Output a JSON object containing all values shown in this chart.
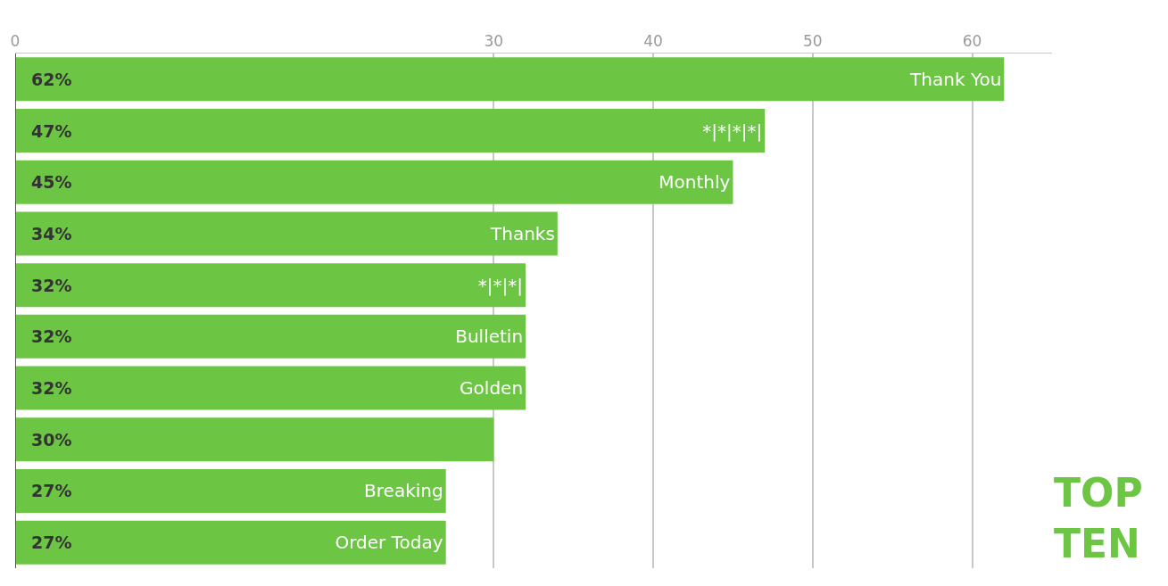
{
  "chart_data": {
    "type": "bar",
    "orientation": "horizontal",
    "categories": [
      "Thank You",
      "*|*|*|*|",
      "Monthly",
      "Thanks",
      "*|*|*|",
      "Bulletin",
      "Golden",
      null,
      "Breaking",
      "Order Today"
    ],
    "values": [
      62,
      47,
      45,
      34,
      32,
      32,
      32,
      30,
      27,
      27
    ],
    "value_labels": [
      "62%",
      "47%",
      "45%",
      "34%",
      "32%",
      "32%",
      "32%",
      "30%",
      "27%",
      "27%"
    ],
    "color": "#6cc644",
    "xlim": [
      0,
      65
    ],
    "xticks": [
      0,
      30,
      40,
      50,
      60
    ],
    "grid": "x",
    "annotations": [
      "TOP\nTEN"
    ]
  }
}
